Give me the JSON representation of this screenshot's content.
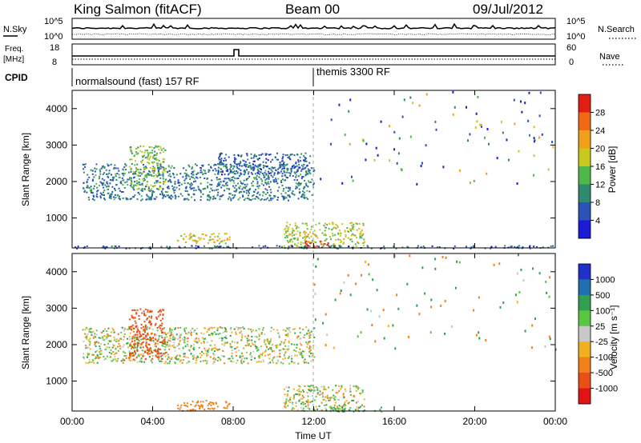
{
  "header": {
    "station": "King Salmon (fitACF)",
    "beam": "Beam 00",
    "date": "09/Jul/2012"
  },
  "summary": {
    "nsky_label": "N.Sky",
    "nsearch_label": "N.Search",
    "left_ticks": [
      "10^5",
      "10^0"
    ],
    "right_ticks": [
      "10^5",
      "10^0"
    ],
    "freq_label_1": "Freq.",
    "freq_label_2": "[MHz]",
    "freq_ticks": [
      "18",
      "8"
    ],
    "nave_label": "Nave",
    "nave_ticks": [
      "60",
      "0"
    ],
    "cpid_label": "CPID",
    "cpid_segments": [
      {
        "label": "normalsound (fast) 157 RF",
        "start_hour": 0
      },
      {
        "label": "themis 3300 RF",
        "start_hour": 12
      }
    ]
  },
  "axes": {
    "ylabel": "Slant Range [km]",
    "yticks": [
      1000,
      2000,
      3000,
      4000
    ],
    "ylim": [
      180,
      4500
    ],
    "xlabel": "Time UT",
    "xticks": [
      "00:00",
      "04:00",
      "08:00",
      "12:00",
      "16:00",
      "20:00",
      "00:00"
    ],
    "xlim_hours": [
      0,
      24
    ]
  },
  "power_colorbar": {
    "label": "Power [dB]",
    "ticks": [
      "4",
      "8",
      "12",
      "16",
      "20",
      "24",
      "28"
    ],
    "colors": [
      "#1c1cd8",
      "#2a52b8",
      "#2e8a6e",
      "#4fb84a",
      "#c8c81e",
      "#f0a01a",
      "#f06a14",
      "#e01e14"
    ]
  },
  "velocity_colorbar": {
    "label": "Velocity [m s⁻¹]",
    "ticks": [
      "1000",
      "500",
      "100",
      "25",
      "-25",
      "-100",
      "-500",
      "-1000"
    ],
    "colors": [
      "#2030c8",
      "#2070b0",
      "#30a050",
      "#58c840",
      "#c8c8c8",
      "#f0b020",
      "#f08018",
      "#e85018",
      "#e01414"
    ]
  },
  "chart_data": [
    {
      "type": "heatmap",
      "title": "Power",
      "xlabel": "Time UT",
      "ylabel": "Slant Range [km]",
      "colorbar": "Power [dB]",
      "clim": [
        0,
        30
      ],
      "regions": [
        {
          "t0": 0.5,
          "t1": 12,
          "r0": 1500,
          "r1": 2500,
          "value": 8
        },
        {
          "t0": 2.8,
          "t1": 4.6,
          "r0": 1800,
          "r1": 3000,
          "value": 14
        },
        {
          "t0": 5.2,
          "t1": 7.8,
          "r0": 300,
          "r1": 600,
          "value": 18
        },
        {
          "t0": 7.2,
          "t1": 11.8,
          "r0": 2200,
          "r1": 2800,
          "value": 6
        },
        {
          "t0": 10.5,
          "t1": 14.5,
          "r0": 200,
          "r1": 900,
          "value": 16
        },
        {
          "t0": 11.5,
          "t1": 13,
          "r0": 200,
          "r1": 400,
          "value": 28
        },
        {
          "t0": 0,
          "t1": 24,
          "r0": 180,
          "r1": 260,
          "value": 6
        }
      ]
    },
    {
      "type": "heatmap",
      "title": "Velocity",
      "xlabel": "Time UT",
      "ylabel": "Slant Range [km]",
      "colorbar": "Velocity [m s-1]",
      "clim": [
        -1000,
        1000
      ],
      "regions": [
        {
          "t0": 0.5,
          "t1": 12,
          "r0": 1500,
          "r1": 2500,
          "value": 0
        },
        {
          "t0": 2.8,
          "t1": 4.6,
          "r0": 1600,
          "r1": 3000,
          "value": -700
        },
        {
          "t0": 5.2,
          "t1": 7.8,
          "r0": 200,
          "r1": 500,
          "value": -300
        },
        {
          "t0": 10.5,
          "t1": 14.5,
          "r0": 200,
          "r1": 900,
          "value": 0
        },
        {
          "t0": 12.5,
          "t1": 15.5,
          "r0": 180,
          "r1": 300,
          "value": 200
        }
      ]
    }
  ]
}
